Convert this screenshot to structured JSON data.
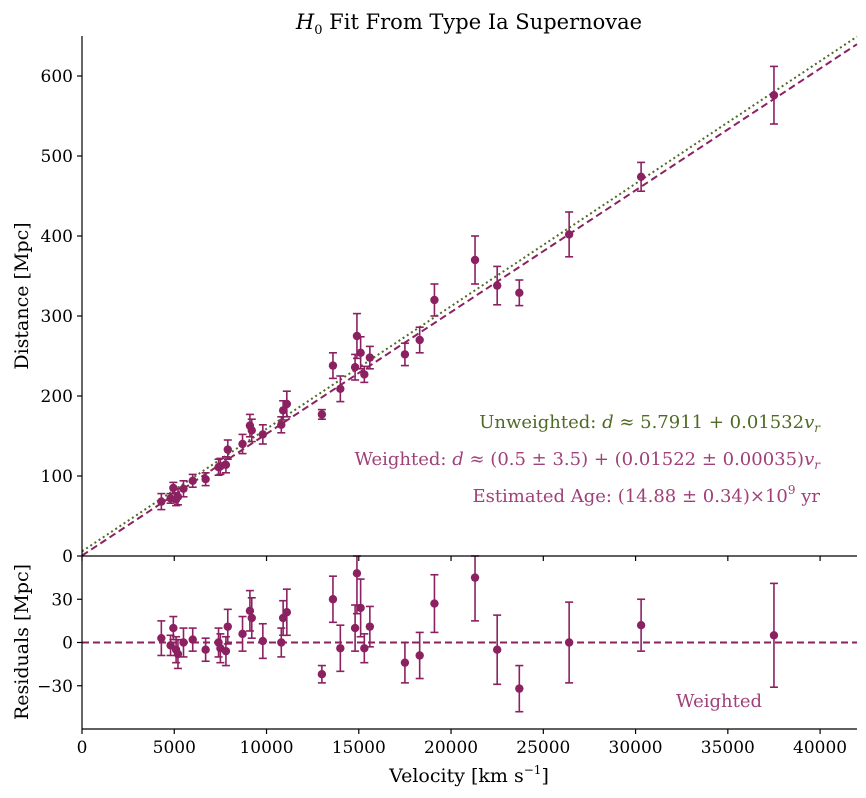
{
  "chart_data": {
    "type": "scatter",
    "title": "H0 Fit From Type Ia Supernovae",
    "colors": {
      "weighted": "#8b2160",
      "unweighted": "#4f6a23",
      "annotation_weighted": "#a0407a"
    },
    "panels": [
      {
        "name": "main",
        "ylabel": "Distance [Mpc]",
        "xlim": [
          0,
          42000
        ],
        "ylim": [
          0,
          650
        ],
        "yticks": [
          0,
          100,
          200,
          300,
          400,
          500,
          600
        ],
        "lines": [
          {
            "name": "unweighted-fit",
            "intercept": 5.7911,
            "slope": 0.01532,
            "style": "dotted",
            "color": "#4f6a23"
          },
          {
            "name": "weighted-fit",
            "intercept": 0.5,
            "slope": 0.01522,
            "style": "dashed",
            "color": "#8b2160"
          }
        ],
        "annotations": [
          {
            "text": "Unweighted: d ≈ 5.7911 + 0.01532v_r",
            "color": "#4f6a23"
          },
          {
            "text": "Weighted: d ≈ (0.5 ± 3.5) + (0.01522 ± 0.00035)v_r",
            "color": "#a0407a"
          },
          {
            "text": "Estimated Age: (14.88 ± 0.34)×10^9 yr",
            "color": "#a0407a"
          }
        ]
      },
      {
        "name": "residuals",
        "ylabel": "Residuals [Mpc]",
        "xlabel": "Velocity [km s^-1]",
        "xlim": [
          0,
          42000
        ],
        "ylim": [
          -60,
          60
        ],
        "yticks": [
          -30,
          0,
          30
        ],
        "xticks": [
          0,
          5000,
          10000,
          15000,
          20000,
          25000,
          30000,
          35000,
          40000
        ],
        "zero_line": {
          "style": "dashed",
          "color": "#8b2160"
        },
        "annotations": [
          {
            "text": "Weighted",
            "color": "#a0407a"
          }
        ]
      }
    ],
    "points": [
      {
        "v": 4300,
        "d": 68,
        "derr": 10,
        "res": 3,
        "reserr": 12
      },
      {
        "v": 4800,
        "d": 72,
        "derr": 6,
        "res": -2,
        "reserr": 7
      },
      {
        "v": 4950,
        "d": 85,
        "derr": 7,
        "res": 10,
        "reserr": 8
      },
      {
        "v": 5100,
        "d": 71,
        "derr": 8,
        "res": -5,
        "reserr": 9
      },
      {
        "v": 5200,
        "d": 74,
        "derr": 10,
        "res": -8,
        "reserr": 10
      },
      {
        "v": 5500,
        "d": 84,
        "derr": 10,
        "res": 0,
        "reserr": 10
      },
      {
        "v": 6000,
        "d": 94,
        "derr": 8,
        "res": 2,
        "reserr": 8
      },
      {
        "v": 6700,
        "d": 96,
        "derr": 8,
        "res": -5,
        "reserr": 8
      },
      {
        "v": 7400,
        "d": 111,
        "derr": 10,
        "res": 0,
        "reserr": 10
      },
      {
        "v": 7500,
        "d": 112,
        "derr": 10,
        "res": -4,
        "reserr": 10
      },
      {
        "v": 7800,
        "d": 114,
        "derr": 10,
        "res": -6,
        "reserr": 10
      },
      {
        "v": 7900,
        "d": 133,
        "derr": 12,
        "res": 11,
        "reserr": 12
      },
      {
        "v": 8700,
        "d": 140,
        "derr": 12,
        "res": 6,
        "reserr": 12
      },
      {
        "v": 9100,
        "d": 163,
        "derr": 14,
        "res": 22,
        "reserr": 14
      },
      {
        "v": 9200,
        "d": 157,
        "derr": 14,
        "res": 17,
        "reserr": 14
      },
      {
        "v": 9800,
        "d": 152,
        "derr": 12,
        "res": 1,
        "reserr": 12
      },
      {
        "v": 10800,
        "d": 164,
        "derr": 10,
        "res": 0,
        "reserr": 10
      },
      {
        "v": 10900,
        "d": 182,
        "derr": 12,
        "res": 17,
        "reserr": 12
      },
      {
        "v": 11100,
        "d": 190,
        "derr": 16,
        "res": 21,
        "reserr": 16
      },
      {
        "v": 13000,
        "d": 177,
        "derr": 6,
        "res": -22,
        "reserr": 6
      },
      {
        "v": 13600,
        "d": 238,
        "derr": 16,
        "res": 30,
        "reserr": 16
      },
      {
        "v": 14000,
        "d": 209,
        "derr": 16,
        "res": -4,
        "reserr": 16
      },
      {
        "v": 14800,
        "d": 236,
        "derr": 16,
        "res": 10,
        "reserr": 16
      },
      {
        "v": 14900,
        "d": 275,
        "derr": 28,
        "res": 48,
        "reserr": 28
      },
      {
        "v": 15100,
        "d": 254,
        "derr": 20,
        "res": 24,
        "reserr": 20
      },
      {
        "v": 15300,
        "d": 227,
        "derr": 10,
        "res": -4,
        "reserr": 10
      },
      {
        "v": 15600,
        "d": 248,
        "derr": 14,
        "res": 11,
        "reserr": 14
      },
      {
        "v": 17500,
        "d": 252,
        "derr": 14,
        "res": -14,
        "reserr": 14
      },
      {
        "v": 18300,
        "d": 270,
        "derr": 16,
        "res": -9,
        "reserr": 16
      },
      {
        "v": 19100,
        "d": 320,
        "derr": 20,
        "res": 27,
        "reserr": 20
      },
      {
        "v": 21300,
        "d": 370,
        "derr": 30,
        "res": 45,
        "reserr": 30
      },
      {
        "v": 22500,
        "d": 338,
        "derr": 24,
        "res": -5,
        "reserr": 24
      },
      {
        "v": 23700,
        "d": 329,
        "derr": 16,
        "res": -32,
        "reserr": 16
      },
      {
        "v": 26400,
        "d": 402,
        "derr": 28,
        "res": 0,
        "reserr": 28
      },
      {
        "v": 30300,
        "d": 474,
        "derr": 18,
        "res": 12,
        "reserr": 18
      },
      {
        "v": 37500,
        "d": 576,
        "derr": 36,
        "res": 5,
        "reserr": 36
      }
    ]
  }
}
